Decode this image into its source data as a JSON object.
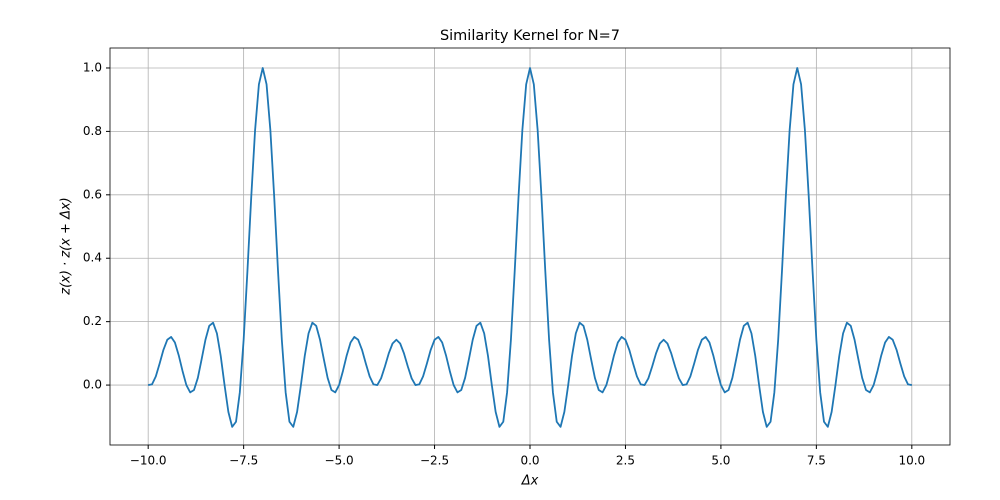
{
  "chart_data": {
    "type": "line",
    "title": "Similarity Kernel for N=7",
    "xlabel": "Δx",
    "ylabel": "z(x) · z(x + Δx)",
    "x": [
      -10,
      -9.9,
      -9.8,
      -9.7,
      -9.6,
      -9.5,
      -9.4,
      -9.3,
      -9.2,
      -9.1,
      -9,
      -8.9,
      -8.8,
      -8.7,
      -8.6,
      -8.5,
      -8.4,
      -8.3,
      -8.2,
      -8.1,
      -8,
      -7.9,
      -7.8,
      -7.7,
      -7.6,
      -7.5,
      -7.4,
      -7.3,
      -7.2,
      -7.1,
      -7,
      -6.9,
      -6.8,
      -6.7,
      -6.6,
      -6.5,
      -6.4,
      -6.3,
      -6.2,
      -6.1,
      -6,
      -5.9,
      -5.8,
      -5.7,
      -5.6,
      -5.5,
      -5.4,
      -5.3,
      -5.2,
      -5.1,
      -5,
      -4.9,
      -4.8,
      -4.7,
      -4.6,
      -4.5,
      -4.4,
      -4.3,
      -4.2,
      -4.1,
      -4,
      -3.9,
      -3.8,
      -3.7,
      -3.6,
      -3.5,
      -3.4,
      -3.3,
      -3.2,
      -3.1,
      -3,
      -2.9,
      -2.8,
      -2.7,
      -2.6,
      -2.5,
      -2.4,
      -2.3,
      -2.2,
      -2.1,
      -2,
      -1.9,
      -1.8,
      -1.7,
      -1.6,
      -1.5,
      -1.4,
      -1.3,
      -1.2,
      -1.1,
      -1,
      -0.9,
      -0.8,
      -0.7,
      -0.6,
      -0.5,
      -0.4,
      -0.3,
      -0.2,
      -0.1,
      0,
      0.1,
      0.2,
      0.3,
      0.4,
      0.5,
      0.6,
      0.7,
      0.8,
      0.9,
      1,
      1.1,
      1.2,
      1.3,
      1.4,
      1.5,
      1.6,
      1.7,
      1.8,
      1.9,
      2,
      2.1,
      2.2,
      2.3,
      2.4,
      2.5,
      2.6,
      2.7,
      2.8,
      2.9,
      3,
      3.1,
      3.2,
      3.3,
      3.4,
      3.5,
      3.6,
      3.7,
      3.8,
      3.9,
      4,
      4.1,
      4.2,
      4.3,
      4.4,
      4.5,
      4.6,
      4.7,
      4.8,
      4.9,
      5,
      5.1,
      5.2,
      5.3,
      5.4,
      5.5,
      5.6,
      5.7,
      5.8,
      5.9,
      6,
      6.1,
      6.2,
      6.3,
      6.4,
      6.5,
      6.6,
      6.7,
      6.8,
      6.9,
      7,
      7.1,
      7.2,
      7.3,
      7.4,
      7.5,
      7.6,
      7.7,
      7.8,
      7.9,
      8,
      8.1,
      8.2,
      8.3,
      8.4,
      8.5,
      8.6,
      8.7,
      8.8,
      8.9,
      9,
      9.1,
      9.2,
      9.3,
      9.4,
      9.5,
      9.6,
      9.7,
      9.8,
      9.9,
      10
    ],
    "series": [
      {
        "color": "#1f77b4",
        "values": [
          0,
          0.0021,
          0.0273,
          0.0681,
          0.1113,
          0.1429,
          0.1518,
          0.1341,
          0.0938,
          0.0441,
          0,
          -0.0231,
          -0.0156,
          0.0225,
          0.0815,
          0.1429,
          0.187,
          0.1968,
          0.163,
          0.0916,
          0,
          -0.0846,
          -0.1318,
          -0.1156,
          -0.0229,
          0.1429,
          0.3607,
          0.595,
          0.8041,
          0.9485,
          1,
          0.9485,
          0.8041,
          0.595,
          0.3607,
          0.1429,
          -0.0229,
          -0.1156,
          -0.1318,
          -0.0846,
          0,
          0.0916,
          0.163,
          0.1968,
          0.187,
          0.1429,
          0.0815,
          0.0225,
          -0.0156,
          -0.0231,
          0,
          0.0441,
          0.0938,
          0.1341,
          0.1518,
          0.1429,
          0.1113,
          0.0681,
          0.0273,
          0.0021,
          0,
          0.0213,
          0.0586,
          0.0996,
          0.1311,
          0.1429,
          0.1311,
          0.0996,
          0.0586,
          0.0213,
          0,
          0.0021,
          0.0273,
          0.0681,
          0.1113,
          0.1429,
          0.1518,
          0.1341,
          0.0938,
          0.0441,
          0,
          -0.0231,
          -0.0156,
          0.0225,
          0.0815,
          0.1429,
          0.187,
          0.1968,
          0.163,
          0.0916,
          0,
          -0.0846,
          -0.1318,
          -0.1156,
          -0.0229,
          0.1429,
          0.3607,
          0.595,
          0.8041,
          0.9485,
          1,
          0.9485,
          0.8041,
          0.595,
          0.3607,
          0.1429,
          -0.0229,
          -0.1156,
          -0.1318,
          -0.0846,
          0,
          0.0916,
          0.163,
          0.1968,
          0.187,
          0.1429,
          0.0815,
          0.0225,
          -0.0156,
          -0.0231,
          0,
          0.0441,
          0.0938,
          0.1341,
          0.1518,
          0.1429,
          0.1113,
          0.0681,
          0.0273,
          0.0021,
          0,
          0.0213,
          0.0586,
          0.0996,
          0.1311,
          0.1429,
          0.1311,
          0.0996,
          0.0586,
          0.0213,
          0,
          0.0021,
          0.0273,
          0.0681,
          0.1113,
          0.1429,
          0.1518,
          0.1341,
          0.0938,
          0.0441,
          0,
          -0.0231,
          -0.0156,
          0.0225,
          0.0815,
          0.1429,
          0.187,
          0.1968,
          0.163,
          0.0916,
          0,
          -0.0846,
          -0.1318,
          -0.1156,
          -0.0229,
          0.1429,
          0.3607,
          0.595,
          0.8041,
          0.9485,
          1,
          0.9485,
          0.8041,
          0.595,
          0.3607,
          0.1429,
          -0.0229,
          -0.1156,
          -0.1318,
          -0.0846,
          0,
          0.0916,
          0.163,
          0.1968,
          0.187,
          0.1429,
          0.0815,
          0.0225,
          -0.0156,
          -0.0231,
          0,
          0.0441,
          0.0938,
          0.1341,
          0.1518,
          0.1429,
          0.1113,
          0.0681,
          0.0273,
          0.0021,
          0
        ]
      }
    ],
    "xlim": [
      -11,
      11
    ],
    "ylim": [
      -0.189,
      1.063
    ],
    "xticks": [
      {
        "value": -10,
        "label": "−10.0"
      },
      {
        "value": -7.5,
        "label": "−7.5"
      },
      {
        "value": -5,
        "label": "−5.0"
      },
      {
        "value": -2.5,
        "label": "−2.5"
      },
      {
        "value": 0,
        "label": "0.0"
      },
      {
        "value": 2.5,
        "label": "2.5"
      },
      {
        "value": 5,
        "label": "5.0"
      },
      {
        "value": 7.5,
        "label": "7.5"
      },
      {
        "value": 10,
        "label": "10.0"
      }
    ],
    "yticks": [
      {
        "value": 0,
        "label": "0.0"
      },
      0.2,
      0.4,
      0.6,
      0.8,
      {
        "value": 1,
        "label": "1.0"
      }
    ],
    "grid": true
  }
}
